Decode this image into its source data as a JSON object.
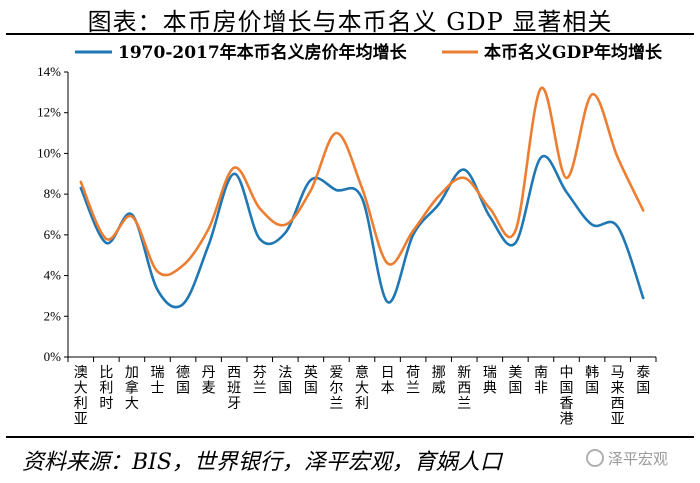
{
  "title": "图表：本币房价增长与本币名义 GDP 显著相关",
  "source": "资料来源：BIS，世界银行，泽平宏观，育娲人口",
  "watermark": "泽平宏观",
  "chart_data": {
    "type": "line",
    "categories": [
      "澳大利亚",
      "比利时",
      "加拿大",
      "瑞士",
      "德国",
      "丹麦",
      "西班牙",
      "芬兰",
      "法国",
      "英国",
      "爱尔兰",
      "意大利",
      "日本",
      "荷兰",
      "挪威",
      "新西兰",
      "瑞典",
      "美国",
      "南非",
      "中国香港",
      "韩国",
      "马来西亚",
      "泰国"
    ],
    "series": [
      {
        "name": "1970-2017年本币名义房价年均增长",
        "color": "#1f77b4",
        "values": [
          8.3,
          5.6,
          7.0,
          3.3,
          2.6,
          5.5,
          9.0,
          5.8,
          6.1,
          8.7,
          8.2,
          7.8,
          2.7,
          6.0,
          7.5,
          9.2,
          6.9,
          5.6,
          9.8,
          8.1,
          6.5,
          6.4,
          2.9
        ]
      },
      {
        "name": "本币名义GDP年均增长",
        "color": "#ed7d31",
        "values": [
          8.6,
          5.8,
          6.9,
          4.2,
          4.5,
          6.3,
          9.3,
          7.3,
          6.5,
          8.2,
          11.0,
          8.3,
          4.6,
          6.2,
          7.9,
          8.8,
          7.3,
          6.2,
          13.2,
          8.8,
          12.9,
          9.8,
          7.2
        ]
      }
    ],
    "yticks": [
      "0%",
      "2%",
      "4%",
      "6%",
      "8%",
      "10%",
      "12%",
      "14%"
    ],
    "ylim": [
      0,
      14
    ],
    "legend": "top",
    "grid": false
  }
}
